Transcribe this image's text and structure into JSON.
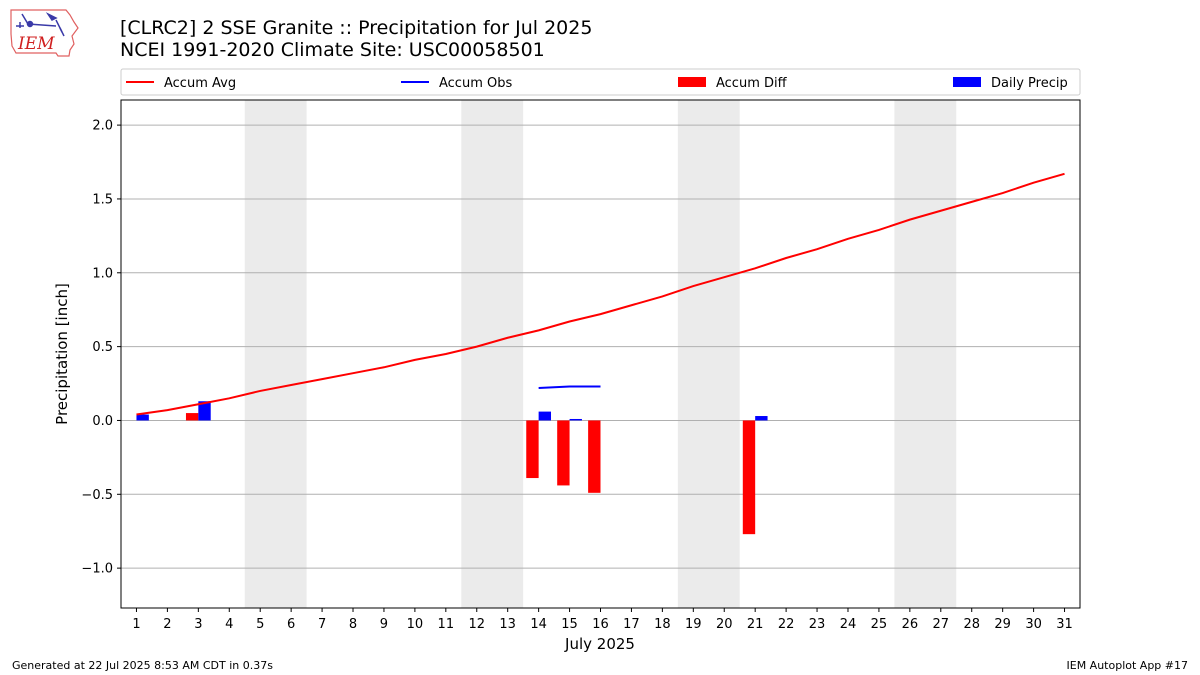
{
  "header": {
    "title_line1": "[CLRC2] 2 SSE Granite :: Precipitation for Jul 2025",
    "title_line2": "NCEI 1991-2020 Climate Site: USC00058501"
  },
  "logo": {
    "text": "IEM",
    "icon": "iowa-state-outline-logo"
  },
  "footer": {
    "left": "Generated at 22 Jul 2025 8:53 AM CDT in 0.37s",
    "right": "IEM Autoplot App #17"
  },
  "colors": {
    "avg": "#ff0000",
    "obs": "#0000ff",
    "diff": "#ff0000",
    "daily": "#0000ff",
    "weekend": "#ebebeb",
    "grid": "#b0b0b0"
  },
  "chart_data": {
    "type": "bar",
    "xlabel": "July 2025",
    "ylabel": "Precipitation [inch]",
    "ylim": [
      -1.27,
      2.17
    ],
    "yticks": [
      -1.0,
      -0.5,
      0.0,
      0.5,
      1.0,
      1.5,
      2.0
    ],
    "ytick_labels": [
      "−1.0",
      "−0.5",
      "0.0",
      "0.5",
      "1.0",
      "1.5",
      "2.0"
    ],
    "xlim": [
      0.5,
      31.5
    ],
    "x": [
      1,
      2,
      3,
      4,
      5,
      6,
      7,
      8,
      9,
      10,
      11,
      12,
      13,
      14,
      15,
      16,
      17,
      18,
      19,
      20,
      21,
      22,
      23,
      24,
      25,
      26,
      27,
      28,
      29,
      30,
      31
    ],
    "xtick_labels": [
      "1",
      "2",
      "3",
      "4",
      "5",
      "6",
      "7",
      "8",
      "9",
      "10",
      "11",
      "12",
      "13",
      "14",
      "15",
      "16",
      "17",
      "18",
      "19",
      "20",
      "21",
      "22",
      "23",
      "24",
      "25",
      "26",
      "27",
      "28",
      "29",
      "30",
      "31"
    ],
    "grid": "horizontal",
    "legend_position": "top",
    "weekend_bands": [
      [
        4.5,
        6.5
      ],
      [
        11.5,
        13.5
      ],
      [
        18.5,
        20.5
      ],
      [
        25.5,
        27.5
      ]
    ],
    "legend": [
      {
        "label": "Accum Avg",
        "kind": "line",
        "color": "#ff0000"
      },
      {
        "label": "Accum Obs",
        "kind": "line",
        "color": "#0000ff"
      },
      {
        "label": "Accum Diff",
        "kind": "bar",
        "color": "#ff0000"
      },
      {
        "label": "Daily Precip",
        "kind": "bar",
        "color": "#0000ff"
      }
    ],
    "series": [
      {
        "name": "Accum Avg",
        "type": "line",
        "color": "#ff0000",
        "x": [
          1,
          2,
          3,
          4,
          5,
          6,
          7,
          8,
          9,
          10,
          11,
          12,
          13,
          14,
          15,
          16,
          17,
          18,
          19,
          20,
          21,
          22,
          23,
          24,
          25,
          26,
          27,
          28,
          29,
          30,
          31
        ],
        "values": [
          0.04,
          0.07,
          0.11,
          0.15,
          0.2,
          0.24,
          0.28,
          0.32,
          0.36,
          0.41,
          0.45,
          0.5,
          0.56,
          0.61,
          0.67,
          0.72,
          0.78,
          0.84,
          0.91,
          0.97,
          1.03,
          1.1,
          1.16,
          1.23,
          1.29,
          1.36,
          1.42,
          1.48,
          1.54,
          1.61,
          1.67
        ]
      },
      {
        "name": "Accum Obs",
        "type": "line",
        "color": "#0000ff",
        "x": [
          14,
          15,
          16
        ],
        "values": [
          0.22,
          0.23,
          0.23
        ]
      },
      {
        "name": "Accum Diff",
        "type": "bar",
        "color": "#ff0000",
        "x": [
          3,
          14,
          15,
          16,
          21
        ],
        "values": [
          0.05,
          -0.39,
          -0.44,
          -0.49,
          -0.77
        ]
      },
      {
        "name": "Daily Precip",
        "type": "bar",
        "color": "#0000ff",
        "x": [
          1,
          3,
          14,
          15,
          21
        ],
        "values": [
          0.04,
          0.13,
          0.06,
          0.01,
          0.03
        ]
      }
    ]
  }
}
